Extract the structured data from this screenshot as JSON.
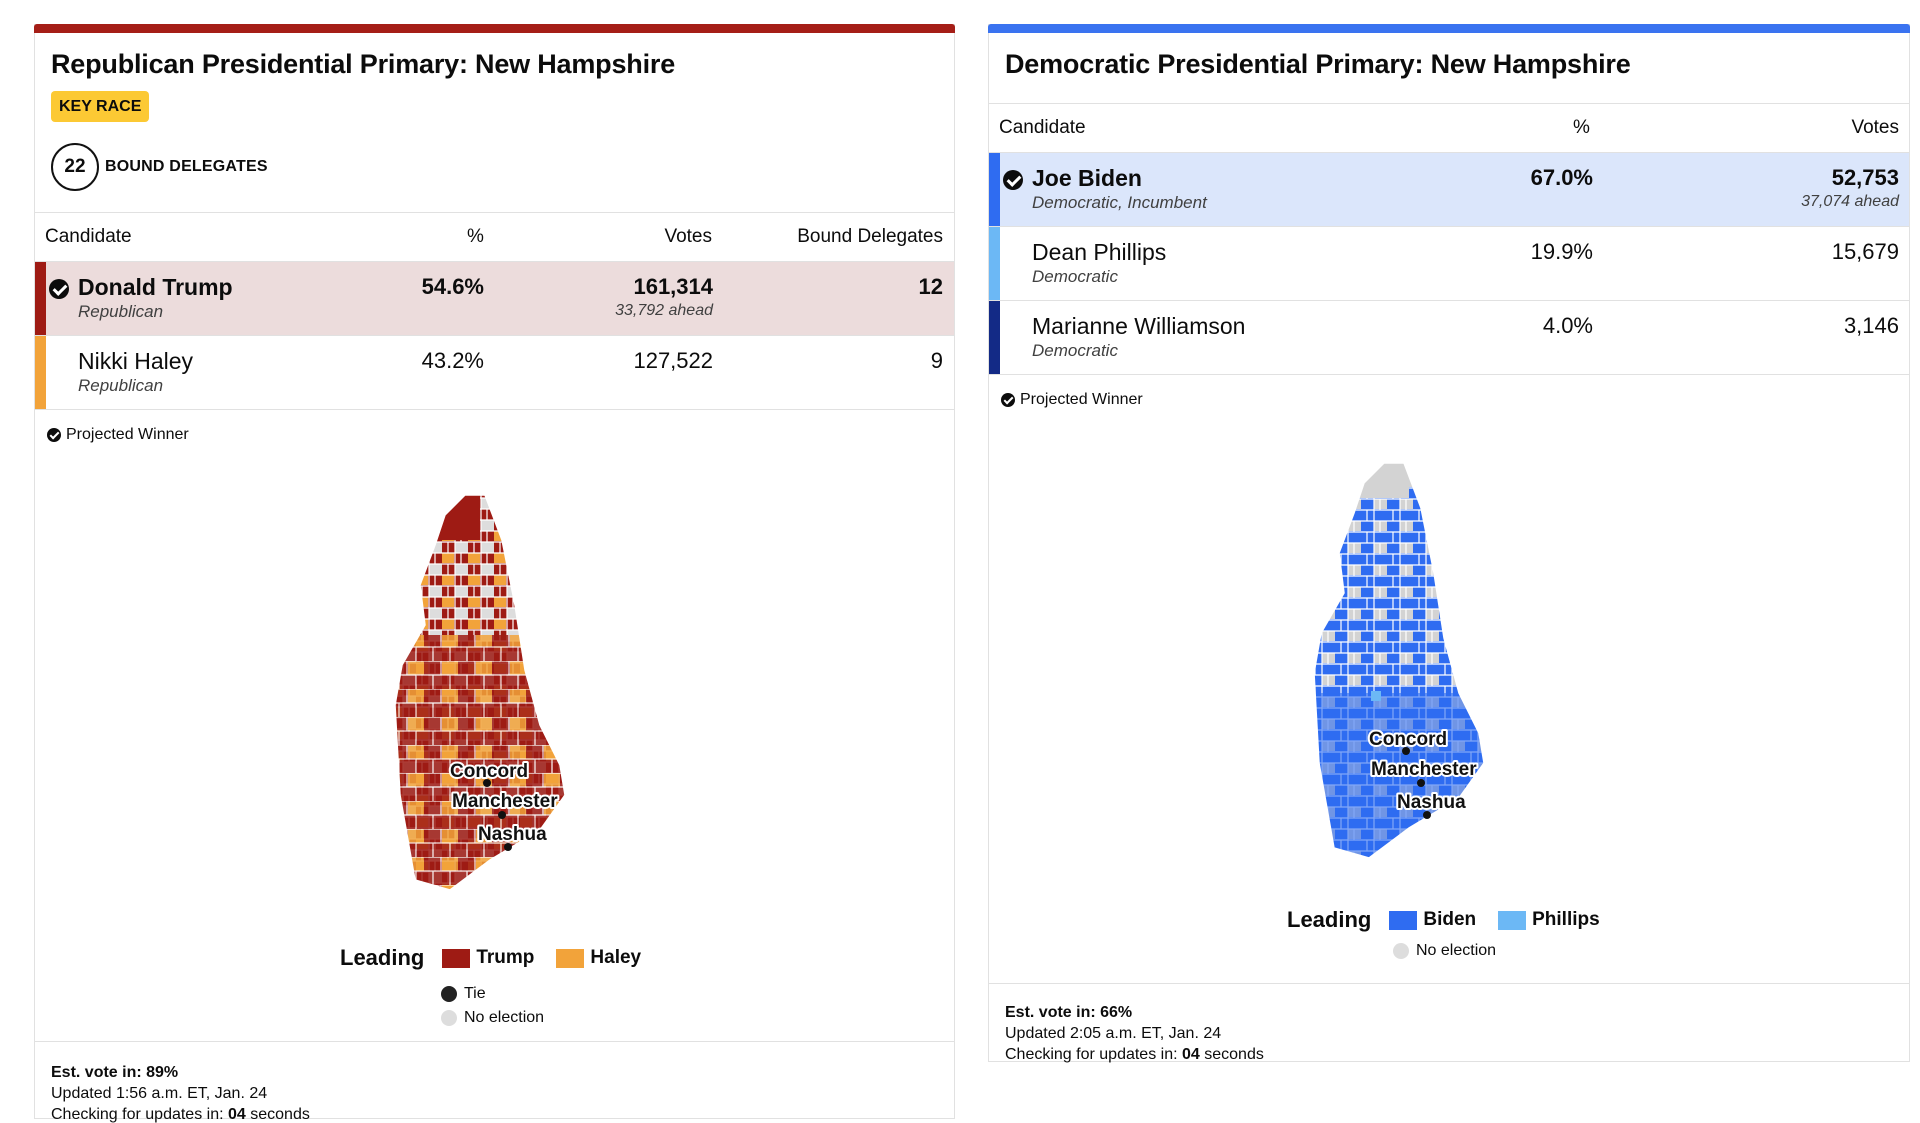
{
  "republican": {
    "title": "Republican Presidential Primary: New Hampshire",
    "accent": "#a51e17",
    "badge": "KEY RACE",
    "delegates_count": "22",
    "delegates_label": "BOUND DELEGATES",
    "columns": {
      "candidate": "Candidate",
      "pct": "%",
      "votes": "Votes",
      "delegates": "Bound Delegates"
    },
    "rows": [
      {
        "name": "Donald Trump",
        "party": "Republican",
        "pct": "54.6%",
        "votes": "161,314",
        "ahead": "33,792 ahead",
        "delegates": "12",
        "winner": true,
        "color": "#9e1b14"
      },
      {
        "name": "Nikki Haley",
        "party": "Republican",
        "pct": "43.2%",
        "votes": "127,522",
        "ahead": "",
        "delegates": "9",
        "winner": false,
        "color": "#f2a33a"
      }
    ],
    "projected_winner": "Projected Winner",
    "map_cities": [
      "Concord",
      "Manchester",
      "Nashua"
    ],
    "legend": {
      "leading": "Leading",
      "a": "Trump",
      "b": "Haley",
      "tie": "Tie",
      "no_election": "No election"
    },
    "footer": {
      "est_label": "Est. vote in: ",
      "est_value": "89%",
      "updated": "Updated 1:56 a.m. ET, Jan. 24",
      "checking_pre": "Checking for updates in: ",
      "checking_num": "04",
      "checking_post": " seconds"
    }
  },
  "democratic": {
    "title": "Democratic Presidential Primary: New Hampshire",
    "accent": "#3a73f0",
    "columns": {
      "candidate": "Candidate",
      "pct": "%",
      "votes": "Votes"
    },
    "rows": [
      {
        "name": "Joe Biden",
        "party": "Democratic, Incumbent",
        "pct": "67.0%",
        "votes": "52,753",
        "ahead": "37,074 ahead",
        "winner": true,
        "color": "#2f6cf1"
      },
      {
        "name": "Dean Phillips",
        "party": "Democratic",
        "pct": "19.9%",
        "votes": "15,679",
        "ahead": "",
        "winner": false,
        "color": "#6cb8f5"
      },
      {
        "name": "Marianne Williamson",
        "party": "Democratic",
        "pct": "4.0%",
        "votes": "3,146",
        "ahead": "",
        "winner": false,
        "color": "#132a86"
      }
    ],
    "projected_winner": "Projected Winner",
    "map_cities": [
      "Concord",
      "Manchester",
      "Nashua"
    ],
    "legend": {
      "leading": "Leading",
      "a": "Biden",
      "b": "Phillips",
      "no_election": "No election"
    },
    "footer": {
      "est_label": "Est. vote in: ",
      "est_value": "66%",
      "updated": "Updated 2:05 a.m. ET, Jan. 24",
      "checking_pre": "Checking for updates in: ",
      "checking_num": "04",
      "checking_post": " seconds"
    }
  }
}
